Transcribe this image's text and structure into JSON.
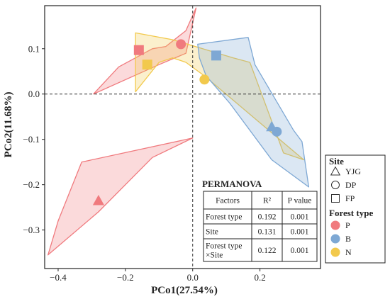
{
  "chart_data": {
    "type": "scatter",
    "title": "",
    "xlabel": "PCo1(27.54%)",
    "ylabel": "PCo2(11.68%)",
    "xlim": [
      -0.44,
      0.38
    ],
    "ylim": [
      -0.385,
      0.195
    ],
    "x_ticks": [
      -0.4,
      -0.2,
      0.0,
      0.2
    ],
    "x_tick_labels": [
      "−0.4",
      "−0.2",
      "0.0",
      "0.2"
    ],
    "y_ticks": [
      -0.3,
      -0.2,
      -0.1,
      0.0,
      0.1
    ],
    "y_tick_labels": [
      "−0.3",
      "−0.2",
      "−0.1",
      "0.0",
      "0.1"
    ],
    "reference_lines": {
      "x": 0,
      "y": 0,
      "style": "dashed"
    },
    "colors": {
      "P": "#f07a7e",
      "B": "#7ea8d4",
      "N": "#f2c94c"
    },
    "hulls": [
      {
        "forest_type": "P",
        "points": [
          [
            -0.295,
            0.0
          ],
          [
            -0.22,
            0.06
          ],
          [
            -0.12,
            0.1
          ],
          [
            -0.08,
            0.105
          ],
          [
            -0.02,
            0.14
          ],
          [
            0.01,
            0.19
          ],
          [
            -0.02,
            0.09
          ],
          [
            -0.1,
            0.065
          ]
        ]
      },
      {
        "forest_type": "P",
        "points": [
          [
            -0.43,
            -0.355
          ],
          [
            -0.4,
            -0.28
          ],
          [
            -0.33,
            -0.15
          ],
          [
            0.0,
            -0.097
          ],
          [
            -0.12,
            -0.14
          ],
          [
            -0.28,
            -0.26
          ]
        ]
      },
      {
        "forest_type": "N",
        "points": [
          [
            -0.17,
            0.135
          ],
          [
            -0.06,
            0.12
          ],
          [
            0.12,
            0.08
          ],
          [
            0.17,
            0.07
          ],
          [
            0.27,
            -0.13
          ],
          [
            0.33,
            -0.145
          ],
          [
            0.035,
            0.04
          ],
          [
            -0.02,
            0.07
          ],
          [
            -0.06,
            0.08
          ],
          [
            -0.1,
            0.07
          ],
          [
            -0.17,
            0.005
          ]
        ]
      },
      {
        "forest_type": "B",
        "points": [
          [
            0.015,
            0.11
          ],
          [
            0.165,
            0.125
          ],
          [
            0.185,
            0.065
          ],
          [
            0.3,
            -0.08
          ],
          [
            0.325,
            -0.105
          ],
          [
            0.345,
            -0.205
          ],
          [
            0.235,
            -0.145
          ],
          [
            0.11,
            -0.02
          ],
          [
            0.04,
            0.04
          ],
          [
            0.02,
            0.08
          ]
        ]
      }
    ],
    "centroids": [
      {
        "forest_type": "P",
        "site": "YJG",
        "x": -0.28,
        "y": -0.235
      },
      {
        "forest_type": "P",
        "site": "DP",
        "x": -0.035,
        "y": 0.11
      },
      {
        "forest_type": "P",
        "site": "FP",
        "x": -0.16,
        "y": 0.097
      },
      {
        "forest_type": "N",
        "site": "DP",
        "x": 0.035,
        "y": 0.032
      },
      {
        "forest_type": "N",
        "site": "FP",
        "x": -0.135,
        "y": 0.065
      },
      {
        "forest_type": "B",
        "site": "YJG",
        "x": 0.235,
        "y": -0.072
      },
      {
        "forest_type": "B",
        "site": "DP",
        "x": 0.25,
        "y": -0.083
      },
      {
        "forest_type": "B",
        "site": "FP",
        "x": 0.07,
        "y": 0.085
      }
    ]
  },
  "legend": {
    "site_title": "Site",
    "sites": [
      {
        "key": "YJG",
        "label": "YJG",
        "shape": "triangle"
      },
      {
        "key": "DP",
        "label": "DP",
        "shape": "circle"
      },
      {
        "key": "FP",
        "label": "FP",
        "shape": "square"
      }
    ],
    "forest_title": "Forest type",
    "forest_types": [
      {
        "key": "P",
        "label": "P"
      },
      {
        "key": "B",
        "label": "B"
      },
      {
        "key": "N",
        "label": "N"
      }
    ]
  },
  "permanova": {
    "title": "PERMANOVA",
    "headers": [
      "Factors",
      "R²",
      "P value"
    ],
    "rows": [
      {
        "factor": [
          "Forest type"
        ],
        "r2": "0.192",
        "p": "0.001"
      },
      {
        "factor": [
          "Site"
        ],
        "r2": "0.131",
        "p": "0.001"
      },
      {
        "factor": [
          "Forest type",
          "×Site"
        ],
        "r2": "0.122",
        "p": "0.001"
      }
    ]
  }
}
